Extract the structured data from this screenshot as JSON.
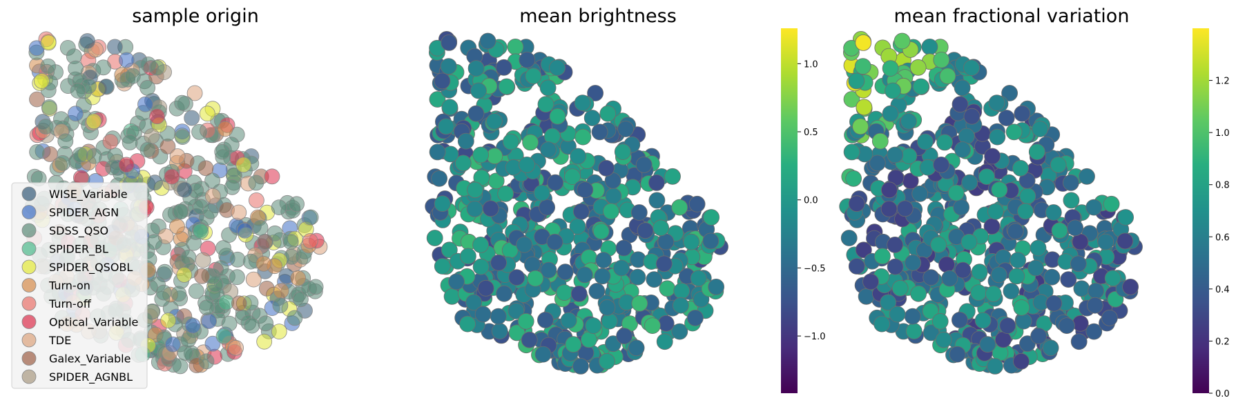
{
  "chart_data": [
    {
      "type": "scatter",
      "title": "sample origin",
      "legend_placement": "lower-left",
      "grid": false,
      "axes_visible": false,
      "series": [
        {
          "name": "WISE_Variable",
          "color": "#355a78"
        },
        {
          "name": "SPIDER_AGN",
          "color": "#3f6fc4"
        },
        {
          "name": "SDSS_QSO",
          "color": "#5b8a78"
        },
        {
          "name": "SPIDER_BL",
          "color": "#4cb88a"
        },
        {
          "name": "SPIDER_QSOBL",
          "color": "#e2e838"
        },
        {
          "name": "Turn-on",
          "color": "#d48a4a"
        },
        {
          "name": "Turn-off",
          "color": "#e8706a"
        },
        {
          "name": "Optical_Variable",
          "color": "#dc2f4c"
        },
        {
          "name": "TDE",
          "color": "#dca27c"
        },
        {
          "name": "Galex_Variable",
          "color": "#9c5e44"
        },
        {
          "name": "SPIDER_AGNBL",
          "color": "#a89880"
        }
      ]
    },
    {
      "type": "scatter",
      "title": "mean brightness",
      "colormap": "viridis",
      "grid": false,
      "axes_visible": false,
      "colorbar": {
        "vmin": -1.42,
        "vmax": 1.26,
        "ticks": [
          1.0,
          0.5,
          0.0,
          -0.5,
          -1.0
        ],
        "tick_labels": [
          "1.0",
          "0.5",
          "0.0",
          "−0.5",
          "−1.0"
        ]
      }
    },
    {
      "type": "scatter",
      "title": "mean fractional variation",
      "colormap": "viridis",
      "grid": false,
      "axes_visible": false,
      "colorbar": {
        "vmin": 0.0,
        "vmax": 1.4,
        "ticks": [
          1.2,
          1.0,
          0.8,
          0.6,
          0.4,
          0.2,
          0.0
        ],
        "tick_labels": [
          "1.2",
          "1.0",
          "0.8",
          "0.6",
          "0.4",
          "0.2",
          "0.0"
        ]
      }
    }
  ]
}
